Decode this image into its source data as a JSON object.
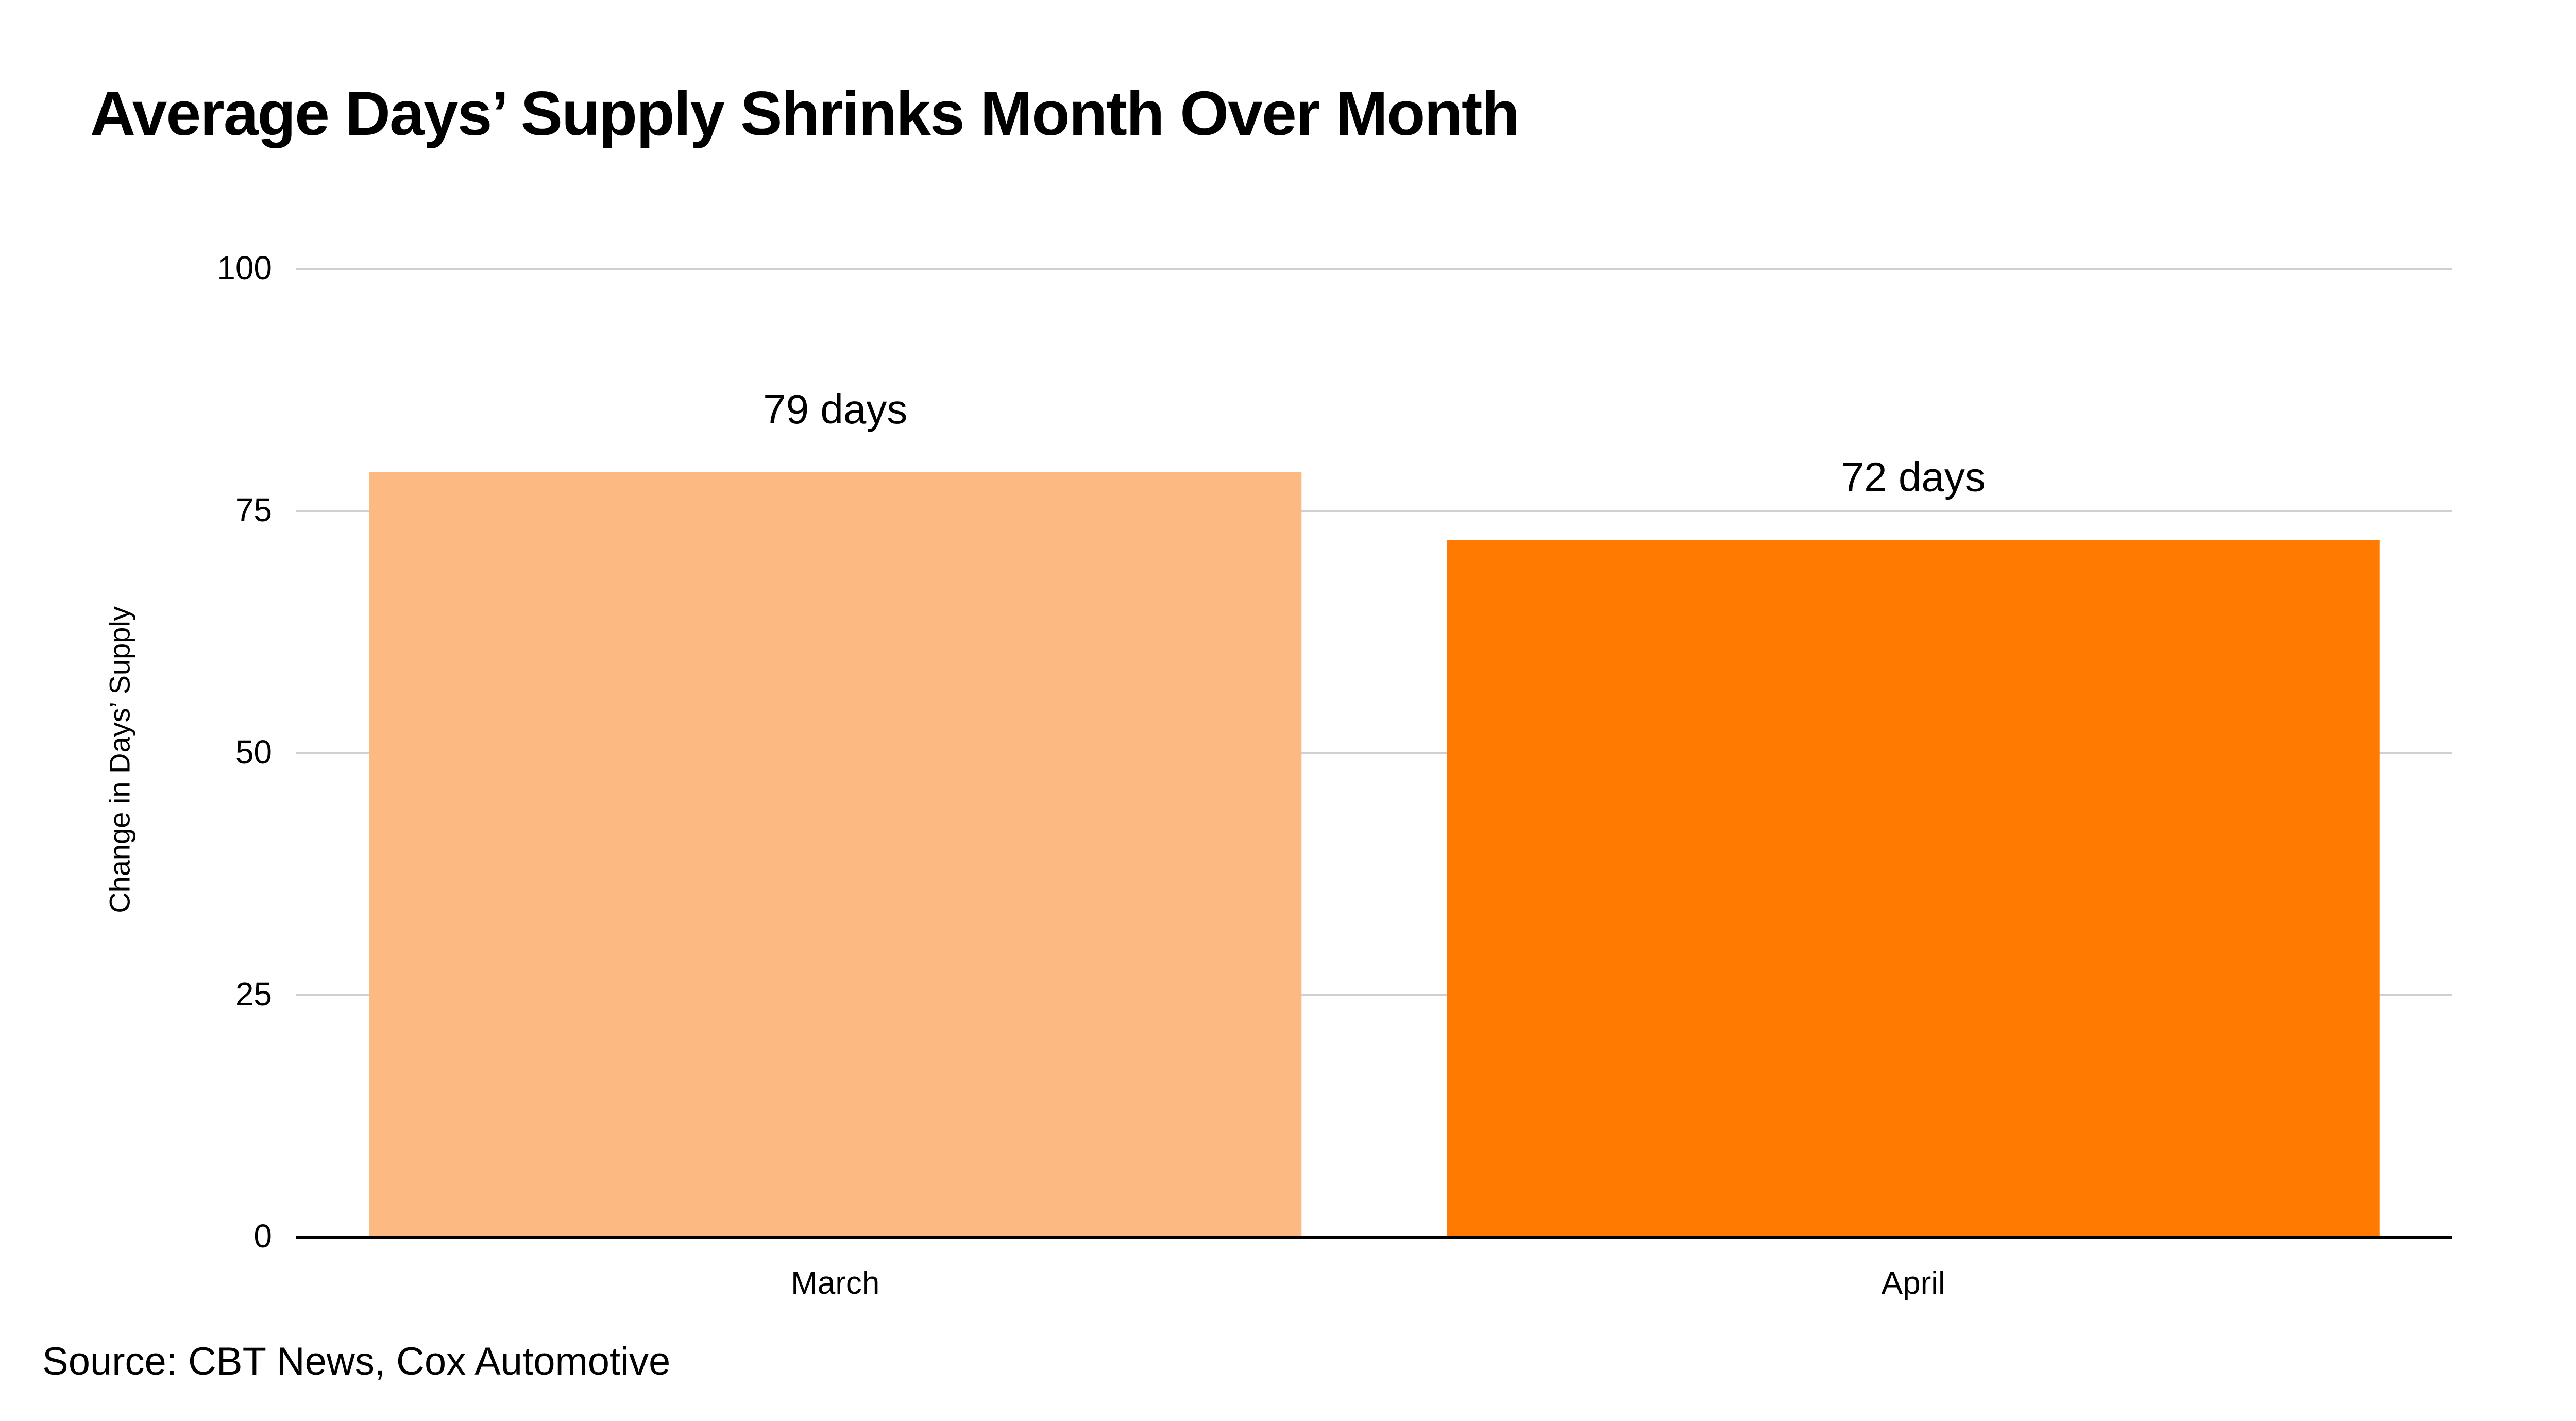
{
  "chart_data": {
    "type": "bar",
    "title": "Average Days’ Supply Shrinks Month Over Month",
    "xlabel": "",
    "ylabel": "Change in Days’ Supply",
    "categories": [
      "March",
      "April"
    ],
    "values": [
      79,
      72
    ],
    "data_labels": [
      "79 days",
      "72 days"
    ],
    "ylim": [
      0,
      100
    ],
    "yticks": [
      0,
      25,
      50,
      75,
      100
    ],
    "grid": true,
    "bar_colors": [
      "#FCB982",
      "#FF7A00"
    ],
    "source": "Source: CBT News, Cox Automotive"
  }
}
